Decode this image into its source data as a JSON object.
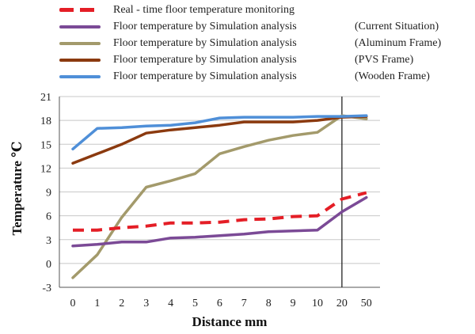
{
  "chart_data": {
    "type": "line",
    "categories": [
      "0",
      "1",
      "2",
      "3",
      "4",
      "5",
      "6",
      "7",
      "8",
      "9",
      "10",
      "20",
      "50"
    ],
    "ylim": [
      -3,
      21
    ],
    "yticks": [
      "21",
      "18",
      "15",
      "12",
      "9",
      "6",
      "3",
      "0",
      "-3"
    ],
    "ytick_values": [
      21,
      18,
      15,
      12,
      9,
      6,
      3,
      0,
      -3
    ],
    "xlabel": "Distance  mm",
    "ylabel": "Temperature ℃",
    "grid": "horizontal",
    "series": [
      {
        "name": "Real - time floor temperature monitoring",
        "frame": "",
        "color": "#e41e26",
        "dashed": true,
        "values": [
          4.2,
          4.2,
          4.5,
          4.7,
          5.1,
          5.1,
          5.2,
          5.5,
          5.6,
          5.9,
          6.0,
          8.1,
          8.9
        ]
      },
      {
        "name": "Floor temperature by Simulation analysis",
        "frame": "(Current Situation)",
        "color": "#7b4a96",
        "dashed": false,
        "values": [
          2.2,
          2.4,
          2.7,
          2.7,
          3.2,
          3.3,
          3.5,
          3.7,
          4.0,
          4.1,
          4.2,
          6.5,
          8.3
        ]
      },
      {
        "name": "Floor temperature by Simulation analysis",
        "frame": "(Aluminum Frame)",
        "color": "#a39a6b",
        "dashed": false,
        "values": [
          -1.8,
          1.1,
          5.8,
          9.6,
          10.4,
          11.3,
          13.8,
          14.7,
          15.5,
          16.1,
          16.5,
          18.6,
          18.2
        ]
      },
      {
        "name": "Floor temperature by Simulation analysis",
        "frame": "(PVS Frame)",
        "color": "#8b3a0f",
        "dashed": false,
        "values": [
          12.6,
          13.8,
          15.0,
          16.4,
          16.8,
          17.1,
          17.4,
          17.8,
          17.8,
          17.8,
          18.0,
          18.4,
          18.5
        ]
      },
      {
        "name": "Floor temperature by Simulation analysis",
        "frame": "(Wooden Frame)",
        "color": "#4f8fd8",
        "dashed": false,
        "values": [
          14.4,
          17.0,
          17.1,
          17.3,
          17.4,
          17.7,
          18.3,
          18.4,
          18.4,
          18.4,
          18.5,
          18.5,
          18.6
        ]
      }
    ]
  }
}
